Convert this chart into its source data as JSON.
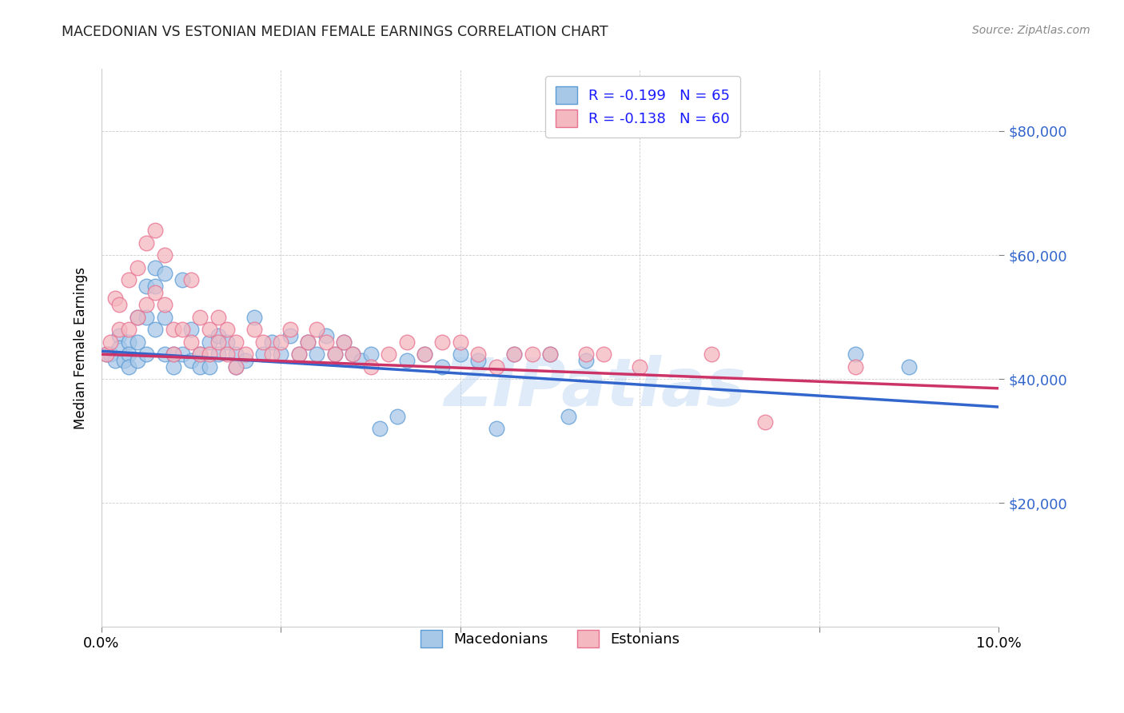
{
  "title": "MACEDONIAN VS ESTONIAN MEDIAN FEMALE EARNINGS CORRELATION CHART",
  "source": "Source: ZipAtlas.com",
  "ylabel": "Median Female Earnings",
  "x_min": 0.0,
  "x_max": 0.1,
  "y_min": 0,
  "y_max": 90000,
  "y_ticks": [
    20000,
    40000,
    60000,
    80000
  ],
  "y_tick_labels": [
    "$20,000",
    "$40,000",
    "$60,000",
    "$80,000"
  ],
  "x_ticks": [
    0.0,
    0.02,
    0.04,
    0.06,
    0.08,
    0.1
  ],
  "x_tick_labels": [
    "0.0%",
    "",
    "",
    "",
    "",
    "10.0%"
  ],
  "macedonian_color": "#a8c8e8",
  "estonian_color": "#f4b8c0",
  "macedonian_edge": "#5b9bd5",
  "estonian_edge": "#e87090",
  "trend_blue": "#3366cc",
  "trend_pink": "#cc3366",
  "legend_text_color": "#1a1aff",
  "R_mac": -0.199,
  "N_mac": 65,
  "R_est": -0.138,
  "N_est": 60,
  "watermark": "ZIPatlas",
  "background_color": "#ffffff",
  "mac_trend_y0": 44500,
  "mac_trend_y1": 35500,
  "est_trend_y0": 44000,
  "est_trend_y1": 38500,
  "macedonians_scatter_x": [
    0.0005,
    0.001,
    0.0015,
    0.002,
    0.002,
    0.0025,
    0.003,
    0.003,
    0.003,
    0.004,
    0.004,
    0.004,
    0.005,
    0.005,
    0.005,
    0.006,
    0.006,
    0.006,
    0.007,
    0.007,
    0.007,
    0.008,
    0.008,
    0.009,
    0.009,
    0.01,
    0.01,
    0.011,
    0.011,
    0.012,
    0.012,
    0.013,
    0.013,
    0.014,
    0.015,
    0.015,
    0.016,
    0.017,
    0.018,
    0.019,
    0.02,
    0.021,
    0.022,
    0.023,
    0.024,
    0.025,
    0.026,
    0.027,
    0.028,
    0.029,
    0.03,
    0.031,
    0.033,
    0.034,
    0.036,
    0.038,
    0.04,
    0.042,
    0.044,
    0.046,
    0.05,
    0.052,
    0.054,
    0.084,
    0.09
  ],
  "macedonians_scatter_y": [
    44000,
    44000,
    43000,
    47000,
    45000,
    43000,
    46000,
    44000,
    42000,
    50000,
    46000,
    43000,
    55000,
    50000,
    44000,
    58000,
    55000,
    48000,
    57000,
    50000,
    44000,
    44000,
    42000,
    56000,
    44000,
    48000,
    43000,
    44000,
    42000,
    46000,
    42000,
    47000,
    44000,
    46000,
    44000,
    42000,
    43000,
    50000,
    44000,
    46000,
    44000,
    47000,
    44000,
    46000,
    44000,
    47000,
    44000,
    46000,
    44000,
    43000,
    44000,
    32000,
    34000,
    43000,
    44000,
    42000,
    44000,
    43000,
    32000,
    44000,
    44000,
    34000,
    43000,
    44000,
    42000
  ],
  "estonians_scatter_x": [
    0.0005,
    0.001,
    0.0015,
    0.002,
    0.002,
    0.003,
    0.003,
    0.004,
    0.004,
    0.005,
    0.005,
    0.006,
    0.006,
    0.007,
    0.007,
    0.008,
    0.008,
    0.009,
    0.01,
    0.01,
    0.011,
    0.011,
    0.012,
    0.012,
    0.013,
    0.013,
    0.014,
    0.014,
    0.015,
    0.015,
    0.016,
    0.017,
    0.018,
    0.019,
    0.02,
    0.021,
    0.022,
    0.023,
    0.024,
    0.025,
    0.026,
    0.027,
    0.028,
    0.03,
    0.032,
    0.034,
    0.036,
    0.038,
    0.04,
    0.042,
    0.044,
    0.046,
    0.048,
    0.05,
    0.054,
    0.056,
    0.06,
    0.068,
    0.074,
    0.084
  ],
  "estonians_scatter_y": [
    44000,
    46000,
    53000,
    52000,
    48000,
    56000,
    48000,
    58000,
    50000,
    62000,
    52000,
    64000,
    54000,
    60000,
    52000,
    48000,
    44000,
    48000,
    56000,
    46000,
    50000,
    44000,
    48000,
    44000,
    50000,
    46000,
    48000,
    44000,
    46000,
    42000,
    44000,
    48000,
    46000,
    44000,
    46000,
    48000,
    44000,
    46000,
    48000,
    46000,
    44000,
    46000,
    44000,
    42000,
    44000,
    46000,
    44000,
    46000,
    46000,
    44000,
    42000,
    44000,
    44000,
    44000,
    44000,
    44000,
    42000,
    44000,
    33000,
    42000
  ]
}
